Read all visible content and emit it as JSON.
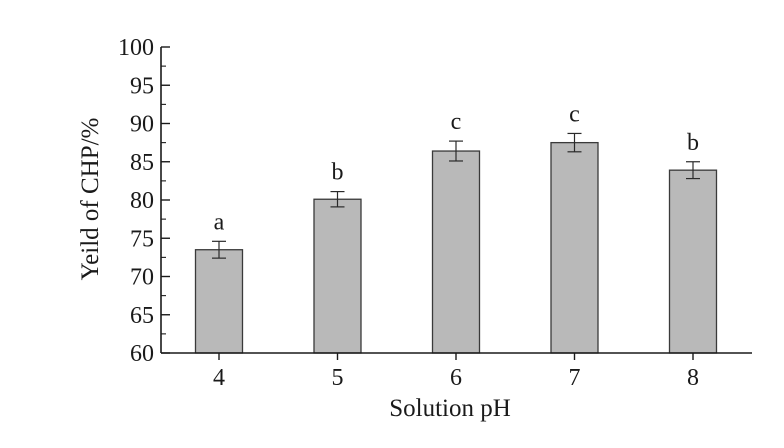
{
  "chart_data": {
    "type": "bar",
    "title": "",
    "xlabel": "Solution pH",
    "ylabel": "Yeild of CHP/%",
    "categories": [
      "4",
      "5",
      "6",
      "7",
      "8"
    ],
    "values": [
      73.5,
      80.1,
      86.4,
      87.5,
      83.9
    ],
    "errors": [
      1.1,
      1.0,
      1.3,
      1.2,
      1.1
    ],
    "significance_labels": [
      "a",
      "b",
      "c",
      "c",
      "b"
    ],
    "ylim": [
      60,
      100
    ],
    "yticks": [
      60,
      65,
      70,
      75,
      80,
      85,
      90,
      95,
      100
    ],
    "ytick_labels": [
      "60",
      "65",
      "70",
      "75",
      "80",
      "85",
      "90",
      "95",
      "100"
    ],
    "grid": false,
    "legend": "none",
    "bar_color": "#b9b9b9",
    "bar_edge_color": "#3a3a3a",
    "axis_color": "#1a1a1a"
  }
}
